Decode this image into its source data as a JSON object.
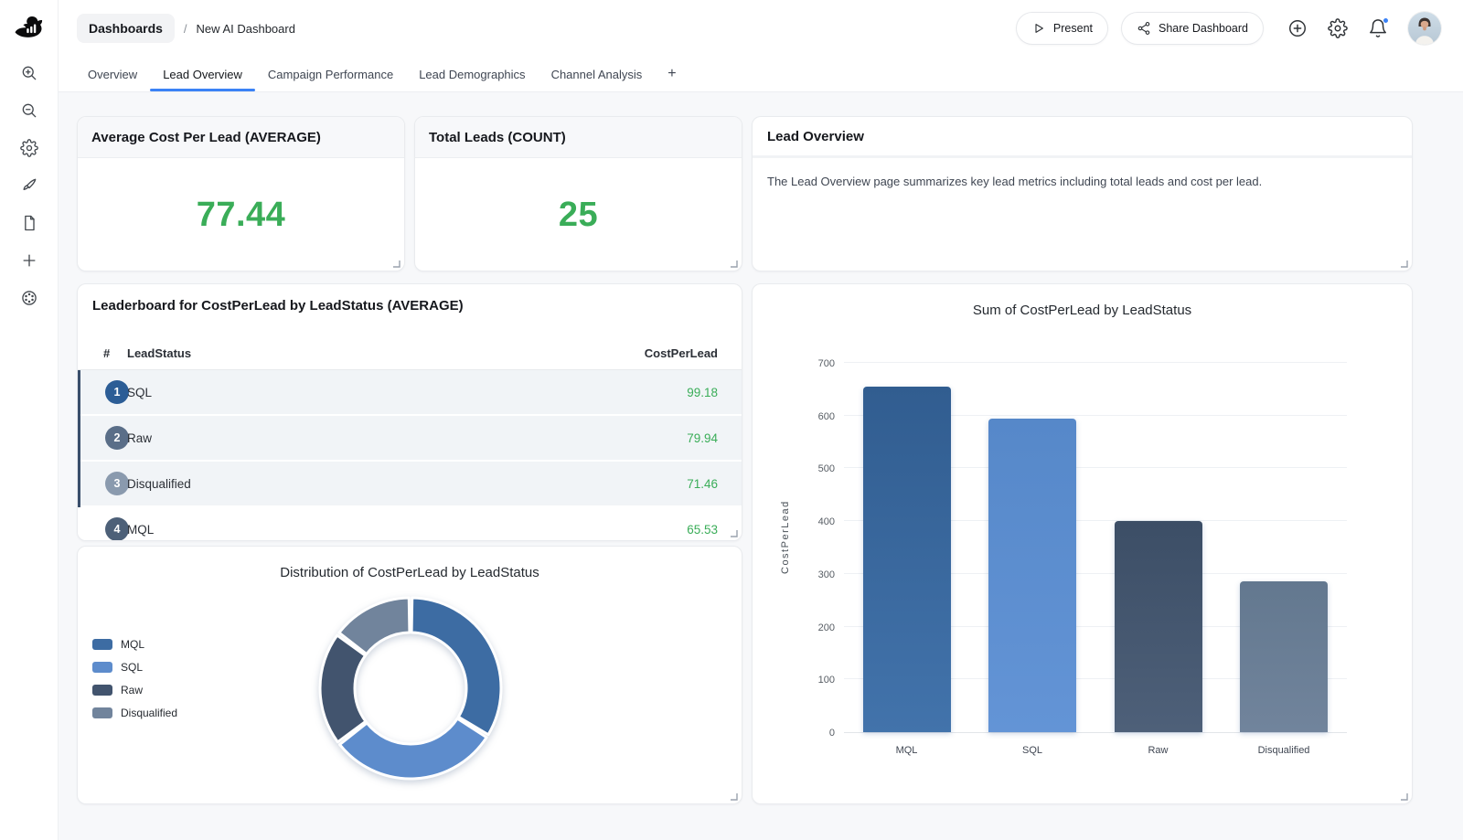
{
  "header": {
    "breadcrumb": {
      "root": "Dashboards",
      "separator": "/",
      "current": "New AI Dashboard"
    },
    "present_label": "Present",
    "share_label": "Share Dashboard"
  },
  "tabs": {
    "items": [
      {
        "label": "Overview"
      },
      {
        "label": "Lead Overview"
      },
      {
        "label": "Campaign Performance"
      },
      {
        "label": "Lead Demographics"
      },
      {
        "label": "Channel Analysis"
      }
    ],
    "active": "Lead Overview",
    "add_label": "+"
  },
  "metrics": {
    "avg_cost": {
      "title": "Average Cost Per Lead (AVERAGE)",
      "value": "77.44"
    },
    "total_leads": {
      "title": "Total Leads (COUNT)",
      "value": "25"
    },
    "value_color": "#3aad58"
  },
  "text_card": {
    "title": "Lead Overview",
    "body": "The Lead Overview page summarizes key lead metrics including total leads and cost per lead."
  },
  "leaderboard": {
    "title": "Leaderboard for CostPerLead by LeadStatus (AVERAGE)",
    "columns": {
      "rank": "#",
      "status": "LeadStatus",
      "value": "CostPerLead"
    },
    "rows": [
      {
        "rank": "1",
        "status": "SQL",
        "value": "99.18",
        "badge_color": "#2c5d96",
        "highlighted": true
      },
      {
        "rank": "2",
        "status": "Raw",
        "value": "79.94",
        "badge_color": "#5a6e88",
        "highlighted": true
      },
      {
        "rank": "3",
        "status": "Disqualified",
        "value": "71.46",
        "badge_color": "#8a9aae",
        "highlighted": true
      },
      {
        "rank": "4",
        "status": "MQL",
        "value": "65.53",
        "badge_color": "#4d6078",
        "highlighted": false
      }
    ],
    "accent_color": "#3a4f6b",
    "value_color": "#3aad58"
  },
  "chart_data": [
    {
      "type": "pie",
      "donut": true,
      "title": "Distribution of CostPerLead by LeadStatus",
      "labels": [
        "MQL",
        "SQL",
        "Raw",
        "Disqualified"
      ],
      "values": [
        655.3,
        595.1,
        399.7,
        285.8
      ],
      "colors": [
        "#3d6ca3",
        "#5d8ccc",
        "#42546e",
        "#71849c"
      ],
      "legend_position": "left"
    },
    {
      "type": "bar",
      "title": "Sum of CostPerLead by LeadStatus",
      "categories": [
        "MQL",
        "SQL",
        "Raw",
        "Disqualified"
      ],
      "values": [
        655.3,
        595.1,
        399.7,
        285.8
      ],
      "bar_gradients": [
        [
          "#315d90",
          "#4273ab"
        ],
        [
          "#5688c9",
          "#6394d6"
        ],
        [
          "#3c4e66",
          "#4e6079"
        ],
        [
          "#63788f",
          "#71849c"
        ]
      ],
      "xlabel": "",
      "ylabel": "CostPerLead",
      "ylim": [
        0,
        700
      ],
      "yticks": [
        0,
        100,
        200,
        300,
        400,
        500,
        600,
        700
      ],
      "grid": true,
      "legend_position": "none"
    }
  ],
  "ui_colors": {
    "accent_blue": "#3b82f6",
    "notification_dot": "#3b82f6"
  }
}
